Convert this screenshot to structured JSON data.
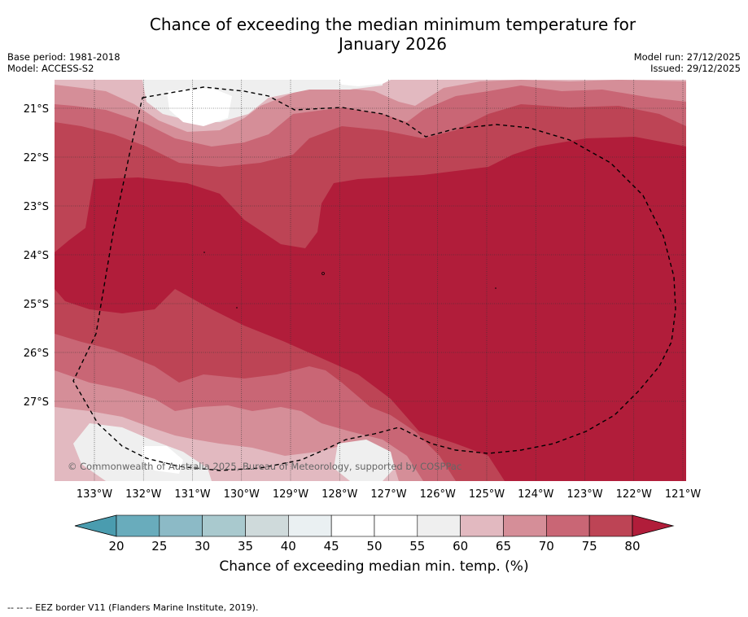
{
  "title_line1": "Chance of exceeding the median minimum temperature for",
  "title_line2": "January 2026",
  "meta": {
    "base_period": "Base period: 1981-2018",
    "model": "Model: ACCESS-S2",
    "model_run": "Model run: 27/12/2025",
    "issued": "Issued: 29/12/2025"
  },
  "map": {
    "lat_labels": [
      "21°S",
      "22°S",
      "23°S",
      "24°S",
      "25°S",
      "26°S",
      "27°S"
    ],
    "lon_labels": [
      "133°W",
      "132°W",
      "131°W",
      "130°W",
      "129°W",
      "128°W",
      "127°W",
      "126°W",
      "125°W",
      "124°W",
      "123°W",
      "122°W",
      "121°W"
    ],
    "copyright": "© Commonwealth of Australia 2025, Bureau of Meteorology, supported by COSPPac"
  },
  "colorbar": {
    "ticks": [
      "20",
      "25",
      "30",
      "35",
      "40",
      "45",
      "50",
      "55",
      "60",
      "65",
      "70",
      "75",
      "80"
    ],
    "colors": [
      "#69acbc",
      "#8cbac6",
      "#a9c9ce",
      "#cfdadb",
      "#eaf0f2",
      "#ffffff",
      "#ffffff",
      "#efefef",
      "#e2b9c0",
      "#d58e98",
      "#c96675",
      "#bd4455"
    ],
    "under_color": "#4a9caf",
    "over_color": "#b11d3a",
    "label": "Chance of exceeding median min. temp. (%)"
  },
  "footer": "--  --  -- EEZ border V11 (Flanders Marine Institute, 2019)."
}
